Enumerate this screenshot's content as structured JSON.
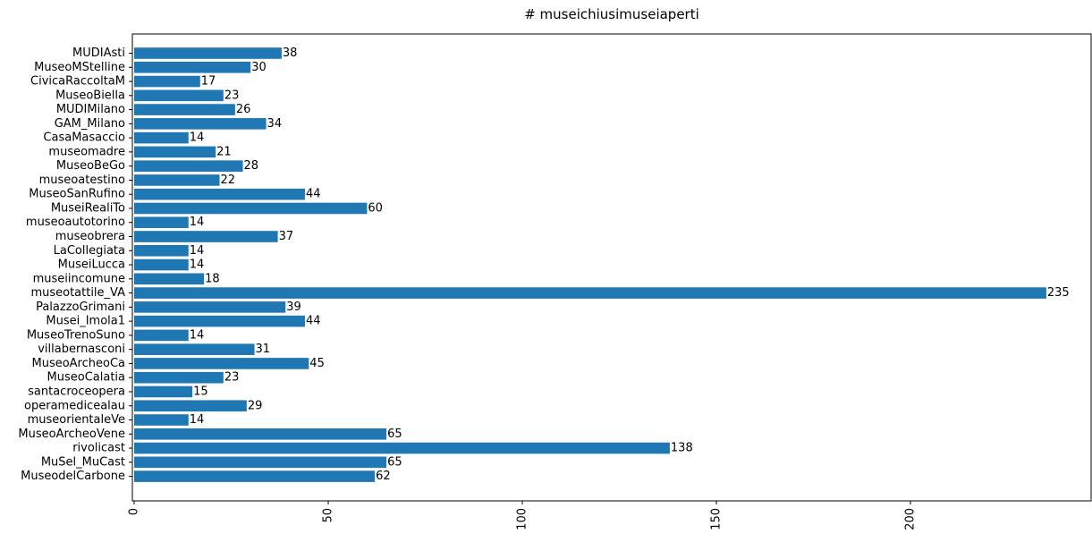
{
  "chart_data": {
    "type": "bar",
    "orientation": "horizontal",
    "title": "# museichiusimuseiaperti",
    "xlabel": "",
    "ylabel": "",
    "bar_color": "#1f77b4",
    "xlim": [
      0,
      246
    ],
    "xticks": [
      0,
      50,
      100,
      150,
      200
    ],
    "grid": false,
    "categories": [
      "MUDIAsti",
      "MuseoMStelline",
      "CivicaRaccoltaM",
      "MuseoBiella",
      "MUDIMilano",
      "GAM_Milano",
      "CasaMasaccio",
      "museomadre",
      "MuseoBeGo",
      "museoatestino",
      "MuseoSanRufino",
      "MuseiRealiTo",
      "museoautotorino",
      "museobrera",
      "LaCollegiata",
      "MuseiLucca",
      "museiincomune",
      "museotattile_VA",
      "PalazzoGrimani",
      "Musei_Imola1",
      "MuseoTrenoSuno",
      "villabernasconi",
      "MuseoArcheoCa",
      "MuseoCalatia",
      "santacroceopera",
      "operamedicealau",
      "museorientaleVe",
      "MuseoArcheoVene",
      "rivolicast",
      "MuSel_MuCast",
      "MuseodelCarbone"
    ],
    "values": [
      38,
      30,
      17,
      23,
      26,
      34,
      14,
      21,
      28,
      22,
      44,
      60,
      14,
      37,
      14,
      14,
      18,
      235,
      39,
      44,
      14,
      31,
      45,
      23,
      15,
      29,
      14,
      65,
      138,
      65,
      62
    ]
  }
}
